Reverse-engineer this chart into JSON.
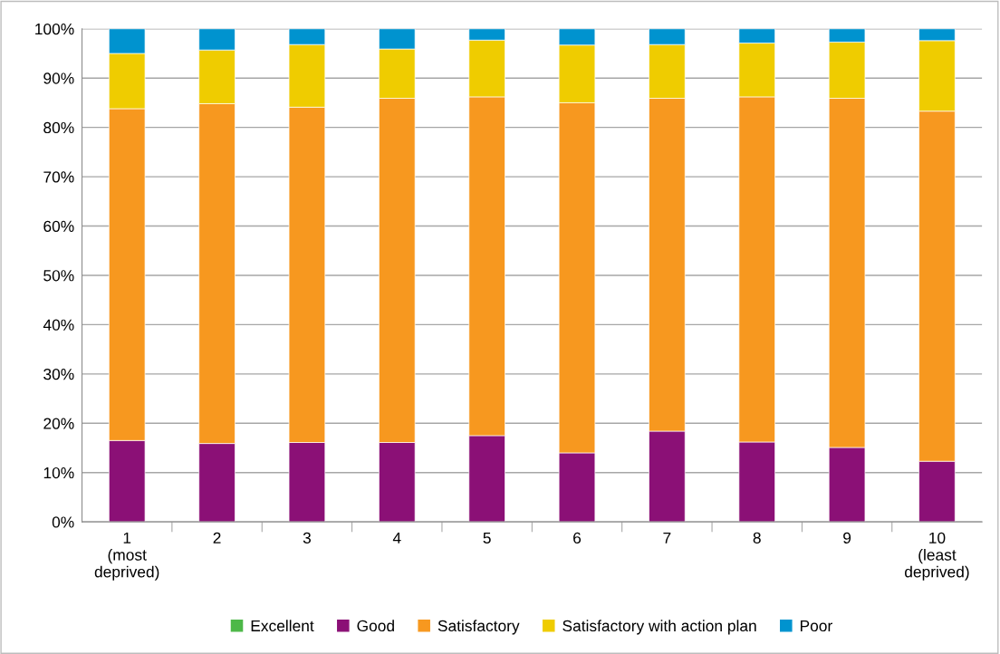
{
  "chart_data": {
    "type": "bar",
    "stacked": true,
    "categories": [
      "1\n(most\ndeprived)",
      "2",
      "3",
      "4",
      "5",
      "6",
      "7",
      "8",
      "9",
      "10\n(least\ndeprived)"
    ],
    "series": [
      {
        "name": "Excellent",
        "color": "#4db848",
        "values": [
          0,
          0,
          0,
          0,
          0,
          0,
          0,
          0,
          0,
          0
        ]
      },
      {
        "name": "Good",
        "color": "#8b1076",
        "values": [
          16.5,
          15.9,
          16.1,
          16.1,
          17.5,
          14.0,
          18.4,
          16.2,
          15.1,
          12.3
        ]
      },
      {
        "name": "Satisfactory",
        "color": "#f7981f",
        "values": [
          67.3,
          68.9,
          68.0,
          69.8,
          68.7,
          71.0,
          67.5,
          70.0,
          70.8,
          71.0
        ]
      },
      {
        "name": "Satisfactory with action plan",
        "color": "#efcc00",
        "values": [
          11.2,
          10.9,
          12.7,
          10.0,
          11.5,
          11.7,
          10.9,
          10.9,
          11.4,
          14.3
        ]
      },
      {
        "name": "Poor",
        "color": "#0093cf",
        "values": [
          5.0,
          4.3,
          3.2,
          4.1,
          2.3,
          3.3,
          3.2,
          2.9,
          2.7,
          2.4
        ]
      }
    ],
    "ylim": [
      0,
      100
    ],
    "yticks": [
      {
        "value": 0,
        "label": "0%"
      },
      {
        "value": 10,
        "label": "10%"
      },
      {
        "value": 20,
        "label": "20%"
      },
      {
        "value": 30,
        "label": "30%"
      },
      {
        "value": 40,
        "label": "40%"
      },
      {
        "value": 50,
        "label": "50%"
      },
      {
        "value": 60,
        "label": "60%"
      },
      {
        "value": 70,
        "label": "70%"
      },
      {
        "value": 80,
        "label": "80%"
      },
      {
        "value": 90,
        "label": "90%"
      },
      {
        "value": 100,
        "label": "100%"
      }
    ],
    "grid": "y",
    "legend": "bottom"
  }
}
